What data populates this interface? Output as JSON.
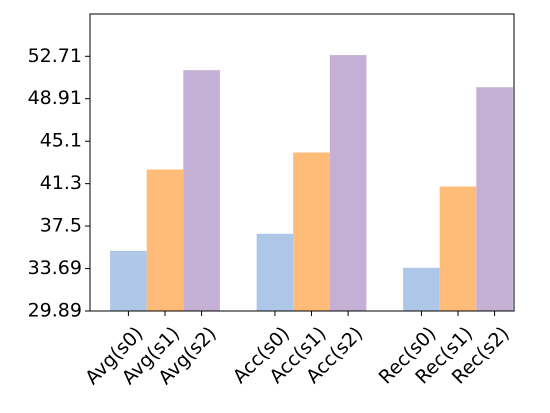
{
  "chart_data": {
    "type": "bar",
    "categories": [
      "Avg(s0)",
      "Avg(s1)",
      "Avg(s2)",
      "Acc(s0)",
      "Acc(s1)",
      "Acc(s2)",
      "Rec(s0)",
      "Rec(s1)",
      "Rec(s2)"
    ],
    "values": [
      35.28,
      42.57,
      51.47,
      36.81,
      44.09,
      52.82,
      33.76,
      41.04,
      49.94
    ],
    "colors": [
      "#aec7e8",
      "#ffbb78",
      "#c5b0d5",
      "#aec7e8",
      "#ffbb78",
      "#c5b0d5",
      "#aec7e8",
      "#ffbb78",
      "#c5b0d5"
    ],
    "ylim": [
      29.89,
      56.5
    ],
    "yticks": [
      29.89,
      33.69,
      37.5,
      41.3,
      45.1,
      48.91,
      52.71
    ]
  }
}
